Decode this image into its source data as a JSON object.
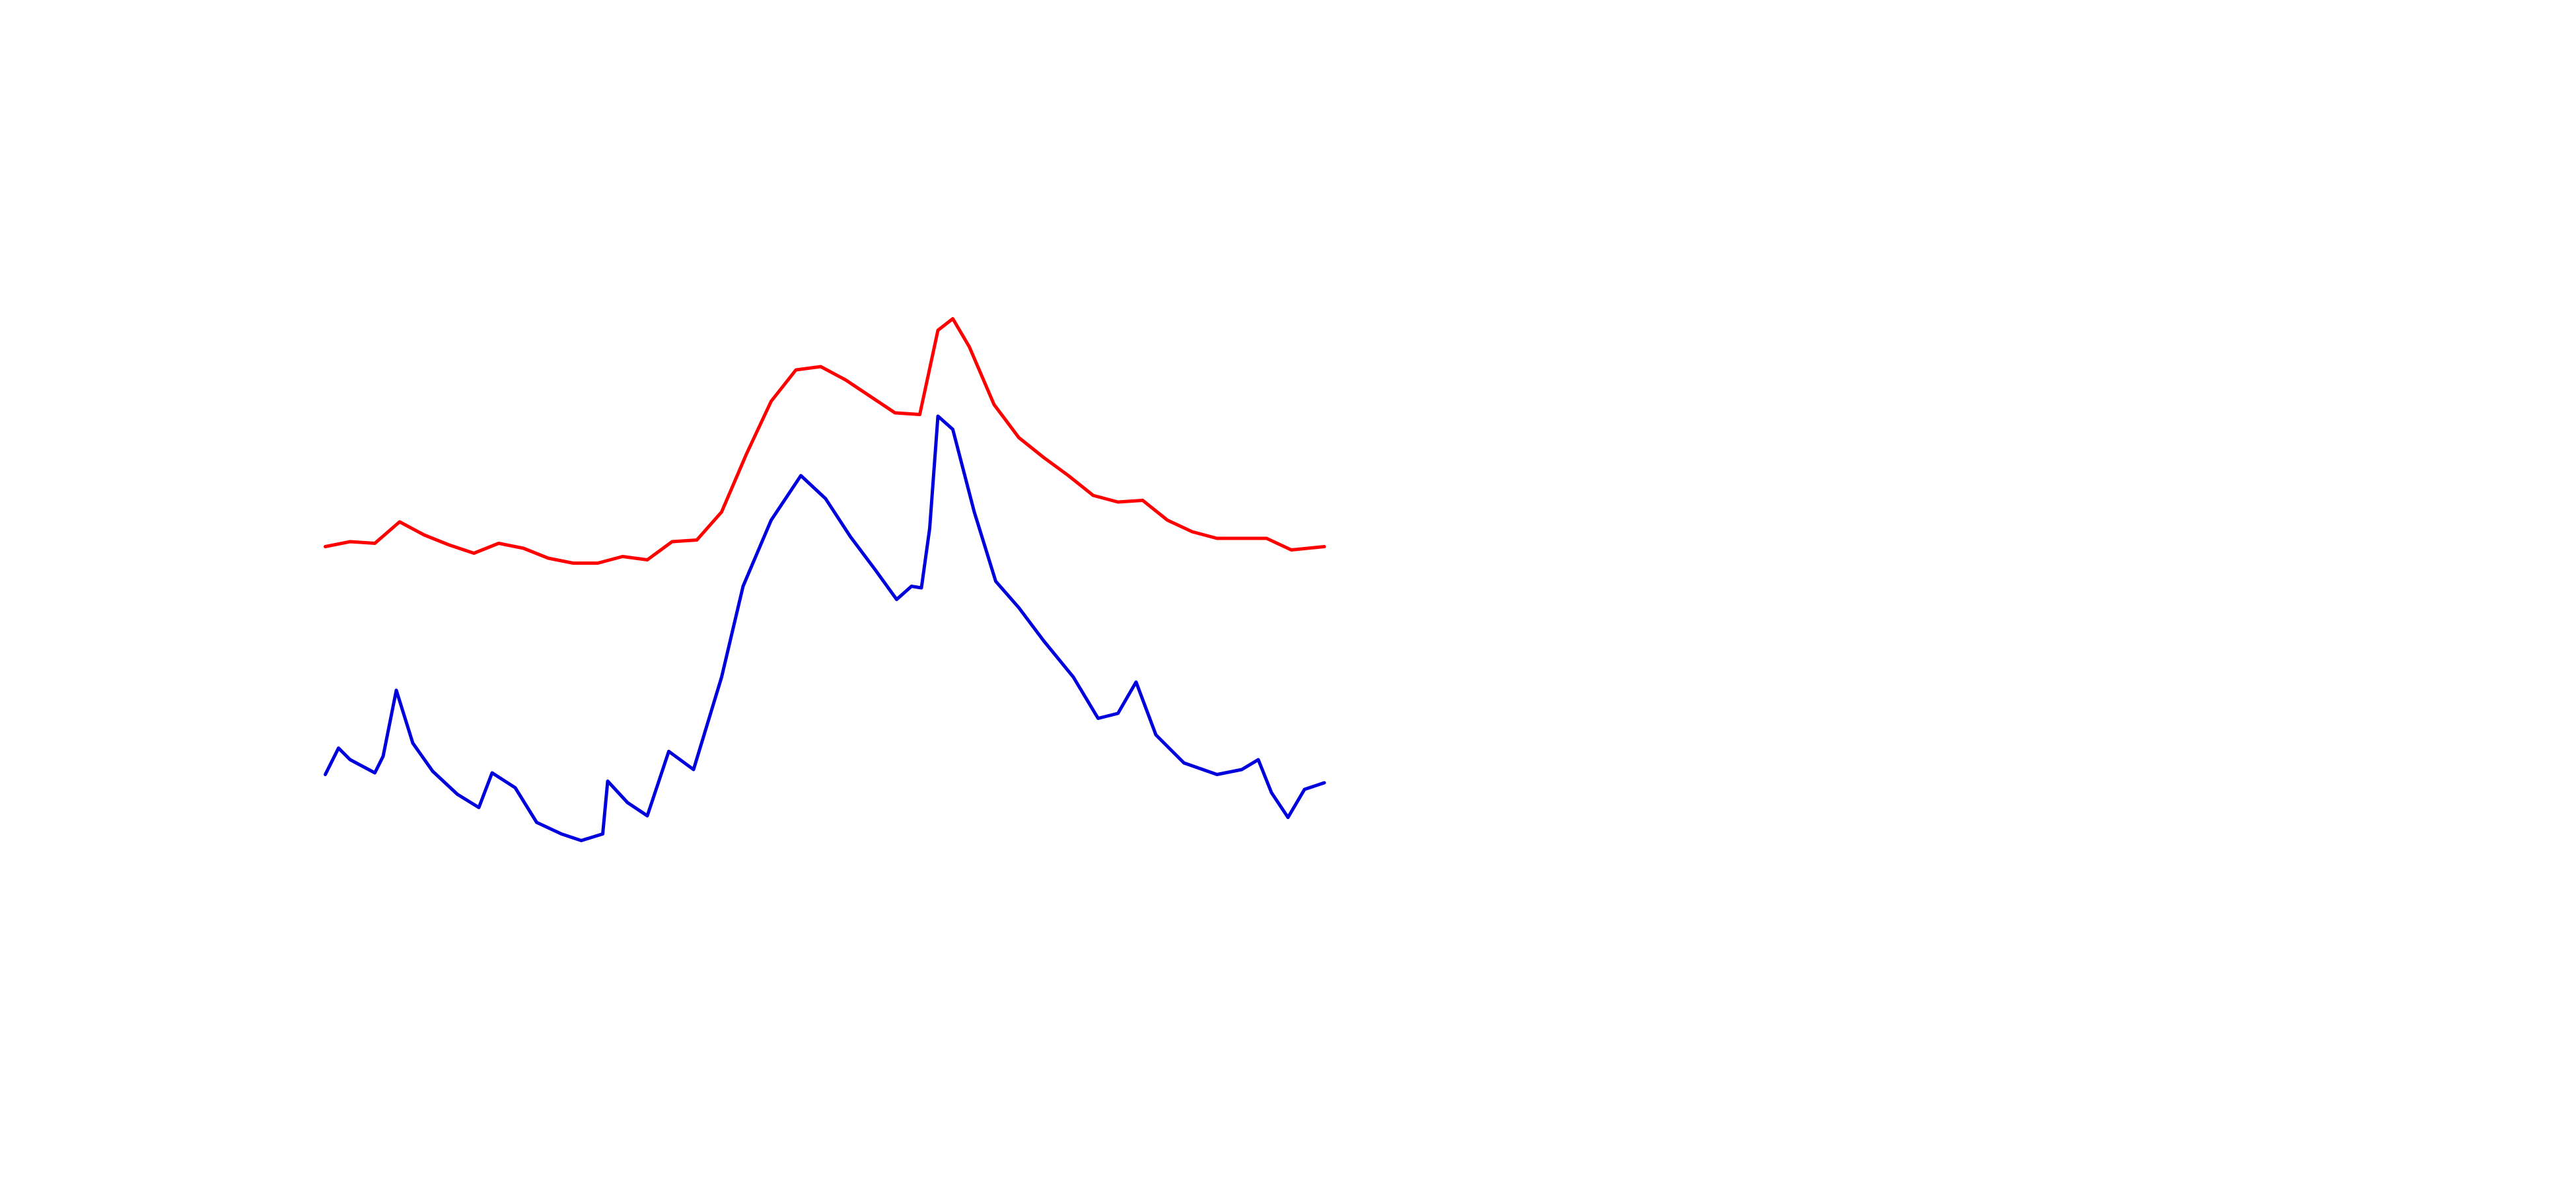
{
  "chart_data": {
    "type": "line",
    "xlim": [
      0,
      605
    ],
    "ylim": [
      0,
      360
    ],
    "series": [
      {
        "color": "#ff0000",
        "x": [
          0,
          15,
          30,
          45,
          60,
          75,
          90,
          105,
          120,
          135,
          150,
          165,
          180,
          195,
          210,
          225,
          240,
          255,
          270,
          285,
          300,
          315,
          330,
          345,
          360,
          371,
          380,
          390,
          405,
          420,
          435,
          450,
          465,
          480,
          495,
          510,
          525,
          540,
          555,
          570,
          585,
          605
        ],
        "values": [
          189,
          192,
          191,
          204,
          196,
          190,
          185,
          191,
          188,
          182,
          179,
          179,
          183,
          181,
          192,
          193,
          210,
          245,
          277,
          296,
          298,
          290,
          280,
          270,
          269,
          320,
          327,
          310,
          275,
          255,
          243,
          232,
          220,
          216,
          217,
          205,
          198,
          194,
          194,
          194,
          187,
          189
        ]
      },
      {
        "color": "#0000dd",
        "x": [
          0,
          8,
          15,
          30,
          35,
          43,
          53,
          65,
          80,
          93,
          101,
          115,
          128,
          143,
          155,
          168,
          171,
          183,
          195,
          208,
          223,
          240,
          253,
          270,
          288,
          303,
          318,
          333,
          346,
          355,
          361,
          366,
          371,
          380,
          393,
          406,
          420,
          435,
          453,
          468,
          480,
          491,
          503,
          520,
          540,
          555,
          565,
          573,
          583,
          593,
          605
        ],
        "values": [
          51,
          67,
          60,
          52,
          62,
          102,
          70,
          53,
          39,
          31,
          52,
          43,
          22,
          15,
          11,
          15,
          47,
          34,
          26,
          65,
          54,
          110,
          165,
          205,
          232,
          218,
          195,
          175,
          157,
          165,
          164,
          200,
          268,
          260,
          210,
          168,
          152,
          132,
          110,
          85,
          88,
          107,
          75,
          58,
          51,
          54,
          60,
          40,
          25,
          42,
          46
        ]
      }
    ]
  }
}
